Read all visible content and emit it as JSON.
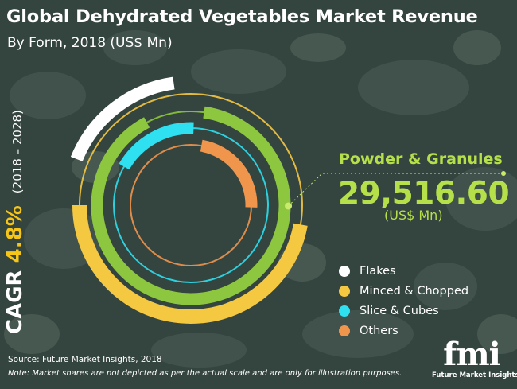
{
  "header": {
    "title": "Global Dehydrated Vegetables Market Revenue",
    "subtitle": "By Form, 2018 (US$ Mn)"
  },
  "cagr": {
    "label": "CAGR",
    "value": "4.8%",
    "period": "(2018 – 2028)"
  },
  "highlight": {
    "name": "Powder & Granules",
    "value": "29,516.60",
    "unit": "(US$ Mn)"
  },
  "legend": [
    {
      "label": "Flakes",
      "color": "#ffffff"
    },
    {
      "label": "Minced & Chopped",
      "color": "#f5c842"
    },
    {
      "label": "Slice & Cubes",
      "color": "#2ee0f0"
    },
    {
      "label": "Others",
      "color": "#f0954c"
    }
  ],
  "footer": {
    "source": "Source: Future Market Insights, 2018",
    "note": "Note: Market shares are not depicted as per the actual scale and are only for illustration purposes."
  },
  "logo": {
    "mark": "fmi",
    "name": "Future Market Insights"
  },
  "chart_data": {
    "type": "radial-bar",
    "title": "Global Dehydrated Vegetables Market Revenue",
    "subtitle": "By Form, 2018 (US$ Mn)",
    "series": [
      {
        "name": "Flakes",
        "color": "#ffffff"
      },
      {
        "name": "Minced & Chopped",
        "color": "#f5c842"
      },
      {
        "name": "Powder & Granules",
        "color": "#8dc63f",
        "value": 29516.6
      },
      {
        "name": "Slice & Cubes",
        "color": "#2ee0f0"
      },
      {
        "name": "Others",
        "color": "#f0954c"
      }
    ]
  }
}
